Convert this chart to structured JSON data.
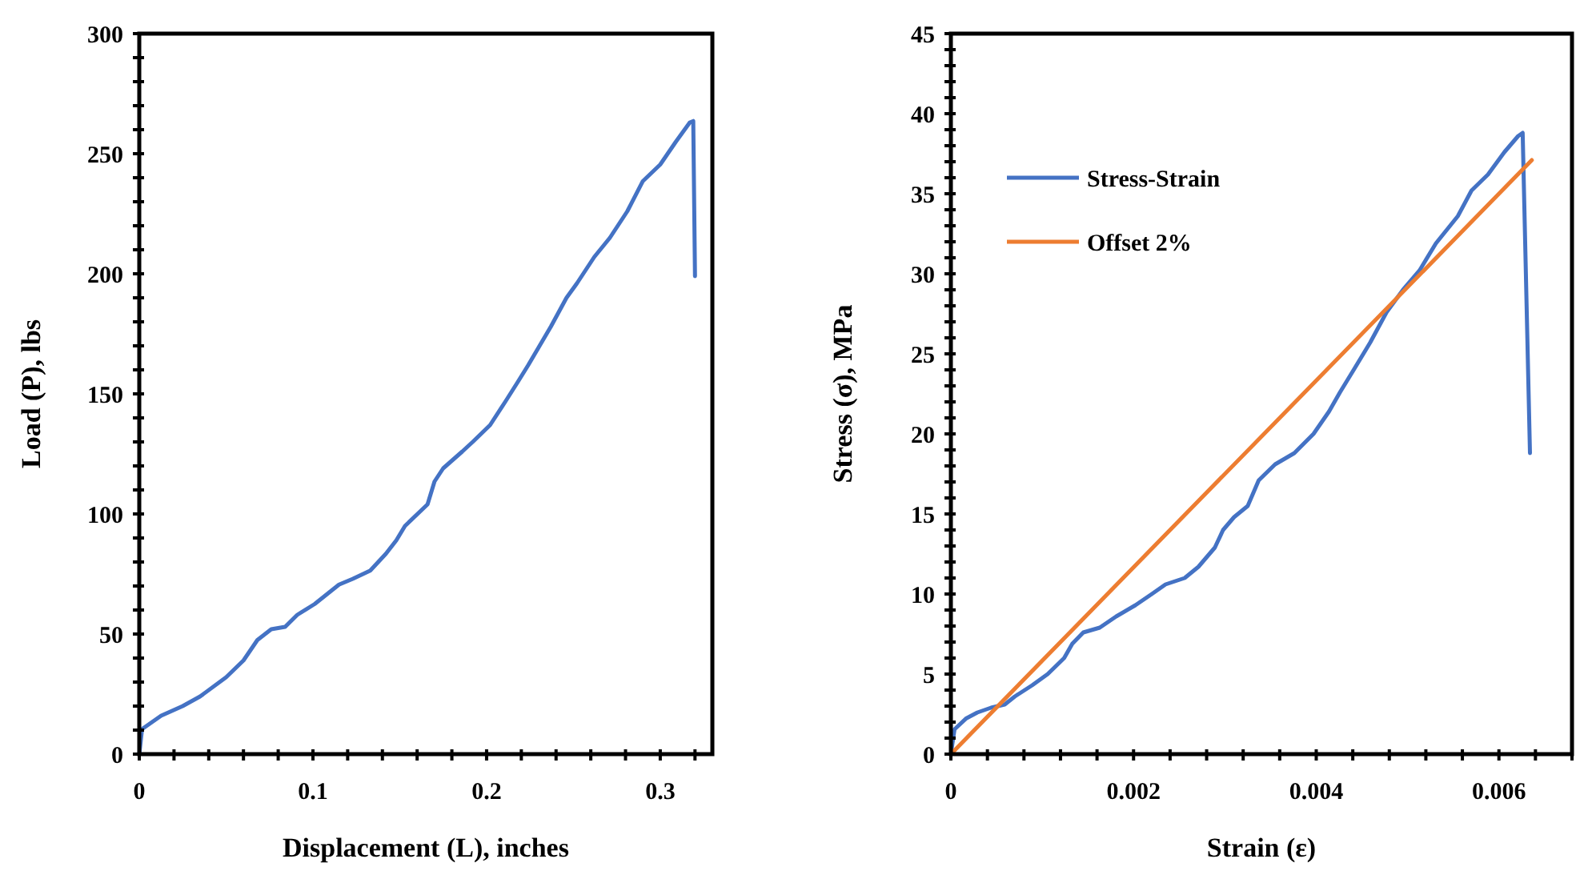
{
  "chart_data": [
    {
      "type": "line",
      "xlabel": "Displacement (L), inches",
      "ylabel": "Load (P), lbs",
      "xlim": [
        0,
        0.33
      ],
      "ylim": [
        0,
        300
      ],
      "xticks": [
        0,
        {
          "value": 0.02,
          "label": null
        },
        {
          "value": 0.04,
          "label": null
        },
        {
          "value": 0.06,
          "label": null
        },
        {
          "value": 0.08,
          "label": null
        },
        0.1,
        {
          "value": 0.12,
          "label": null
        },
        {
          "value": 0.14,
          "label": null
        },
        {
          "value": 0.16,
          "label": null
        },
        {
          "value": 0.18,
          "label": null
        },
        0.2,
        {
          "value": 0.22,
          "label": null
        },
        {
          "value": 0.24,
          "label": null
        },
        {
          "value": 0.26,
          "label": null
        },
        {
          "value": 0.28,
          "label": null
        },
        0.3,
        {
          "value": 0.32,
          "label": null
        }
      ],
      "yticks": [
        0,
        {
          "value": 10,
          "label": null
        },
        {
          "value": 20,
          "label": null
        },
        {
          "value": 30,
          "label": null
        },
        {
          "value": 40,
          "label": null
        },
        50,
        {
          "value": 60,
          "label": null
        },
        {
          "value": 70,
          "label": null
        },
        {
          "value": 80,
          "label": null
        },
        {
          "value": 90,
          "label": null
        },
        100,
        {
          "value": 110,
          "label": null
        },
        {
          "value": 120,
          "label": null
        },
        {
          "value": 130,
          "label": null
        },
        {
          "value": 140,
          "label": null
        },
        150,
        {
          "value": 160,
          "label": null
        },
        {
          "value": 170,
          "label": null
        },
        {
          "value": 180,
          "label": null
        },
        {
          "value": 190,
          "label": null
        },
        200,
        {
          "value": 210,
          "label": null
        },
        {
          "value": 220,
          "label": null
        },
        {
          "value": 230,
          "label": null
        },
        {
          "value": 240,
          "label": null
        },
        250,
        {
          "value": 260,
          "label": null
        },
        {
          "value": 270,
          "label": null
        },
        {
          "value": 280,
          "label": null
        },
        {
          "value": 290,
          "label": null
        },
        300
      ],
      "grid": false,
      "legend": false,
      "marker": "none",
      "line_style": "solid",
      "series": [
        {
          "color": "#4472c4",
          "x": [
            0,
            0.0016,
            0.0126,
            0.025,
            0.035,
            0.05,
            0.06,
            0.068,
            0.076,
            0.084,
            0.091,
            0.101,
            0.115,
            0.123,
            0.133,
            0.142,
            0.148,
            0.153,
            0.166,
            0.17,
            0.175,
            0.186,
            0.192,
            0.202,
            0.211,
            0.218,
            0.224,
            0.237,
            0.246,
            0.252,
            0.262,
            0.271,
            0.281,
            0.29,
            0.3,
            0.309,
            0.317,
            0.319,
            0.32
          ],
          "values": [
            0,
            10.4,
            16,
            20,
            24,
            32,
            39,
            47.5,
            52,
            53,
            58,
            62.5,
            70.6,
            73,
            76.4,
            83.4,
            89,
            95,
            104,
            113.5,
            119,
            126,
            130,
            137,
            147,
            155,
            162,
            178,
            190,
            196,
            207,
            215,
            226,
            238.6,
            245.5,
            255,
            263,
            263.6,
            199
          ]
        }
      ]
    },
    {
      "type": "line",
      "xlabel": "Strain (ε)",
      "ylabel": "Stress (σ), MPa",
      "xlim": [
        0,
        0.0068
      ],
      "ylim": [
        0,
        45
      ],
      "xticks": [
        0,
        {
          "value": 0.0004,
          "label": null
        },
        {
          "value": 0.0008,
          "label": null
        },
        {
          "value": 0.0012,
          "label": null
        },
        {
          "value": 0.0016,
          "label": null
        },
        0.002,
        {
          "value": 0.0024,
          "label": null
        },
        {
          "value": 0.0028,
          "label": null
        },
        {
          "value": 0.0032,
          "label": null
        },
        {
          "value": 0.0036,
          "label": null
        },
        0.004,
        {
          "value": 0.0044,
          "label": null
        },
        {
          "value": 0.0048,
          "label": null
        },
        {
          "value": 0.0052,
          "label": null
        },
        {
          "value": 0.0056,
          "label": null
        },
        0.006,
        {
          "value": 0.0064,
          "label": null
        },
        {
          "value": 0.0068,
          "label": null
        }
      ],
      "yticks": [
        0,
        {
          "value": 1,
          "label": null
        },
        {
          "value": 2,
          "label": null
        },
        {
          "value": 3,
          "label": null
        },
        {
          "value": 4,
          "label": null
        },
        5,
        {
          "value": 6,
          "label": null
        },
        {
          "value": 7,
          "label": null
        },
        {
          "value": 8,
          "label": null
        },
        {
          "value": 9,
          "label": null
        },
        10,
        {
          "value": 11,
          "label": null
        },
        {
          "value": 12,
          "label": null
        },
        {
          "value": 13,
          "label": null
        },
        {
          "value": 14,
          "label": null
        },
        15,
        {
          "value": 16,
          "label": null
        },
        {
          "value": 17,
          "label": null
        },
        {
          "value": 18,
          "label": null
        },
        {
          "value": 19,
          "label": null
        },
        20,
        {
          "value": 21,
          "label": null
        },
        {
          "value": 22,
          "label": null
        },
        {
          "value": 23,
          "label": null
        },
        {
          "value": 24,
          "label": null
        },
        25,
        {
          "value": 26,
          "label": null
        },
        {
          "value": 27,
          "label": null
        },
        {
          "value": 28,
          "label": null
        },
        {
          "value": 29,
          "label": null
        },
        30,
        {
          "value": 31,
          "label": null
        },
        {
          "value": 32,
          "label": null
        },
        {
          "value": 33,
          "label": null
        },
        {
          "value": 34,
          "label": null
        },
        35,
        {
          "value": 36,
          "label": null
        },
        {
          "value": 37,
          "label": null
        },
        {
          "value": 38,
          "label": null
        },
        {
          "value": 39,
          "label": null
        },
        40,
        {
          "value": 41,
          "label": null
        },
        {
          "value": 42,
          "label": null
        },
        {
          "value": 43,
          "label": null
        },
        {
          "value": 44,
          "label": null
        },
        45
      ],
      "grid": false,
      "legend": "top left",
      "marker": "none",
      "line_style": "solid",
      "series": [
        {
          "name": "Stress-Strain",
          "color": "#4472c4",
          "x": [
            0,
            4e-05,
            0.00017,
            0.00029,
            0.00044,
            0.00059,
            0.0007,
            0.00089,
            0.00106,
            0.00124,
            0.00133,
            0.00145,
            0.00163,
            0.00181,
            0.00202,
            0.0022,
            0.00235,
            0.00256,
            0.00271,
            0.00289,
            0.00298,
            0.0031,
            0.00325,
            0.00337,
            0.00355,
            0.00376,
            0.00397,
            0.00414,
            0.00426,
            0.00441,
            0.00459,
            0.00477,
            0.00495,
            0.00513,
            0.00531,
            0.00555,
            0.0057,
            0.00588,
            0.00606,
            0.00621,
            0.00626,
            0.00634
          ],
          "values": [
            0,
            1.55,
            2.24,
            2.6,
            2.9,
            3.1,
            3.6,
            4.3,
            5,
            6,
            6.9,
            7.6,
            7.9,
            8.6,
            9.3,
            10,
            10.6,
            11,
            11.7,
            12.9,
            14,
            14.8,
            15.5,
            17.1,
            18.1,
            18.8,
            20,
            21.4,
            22.6,
            24,
            25.7,
            27.6,
            29,
            30.2,
            31.9,
            33.6,
            35.2,
            36.2,
            37.6,
            38.6,
            38.8,
            18.8
          ]
        },
        {
          "name": "Offset 2%",
          "color": "#ed7d31",
          "x": [
            0,
            0.00636
          ],
          "values": [
            0,
            37.1
          ]
        }
      ]
    }
  ]
}
